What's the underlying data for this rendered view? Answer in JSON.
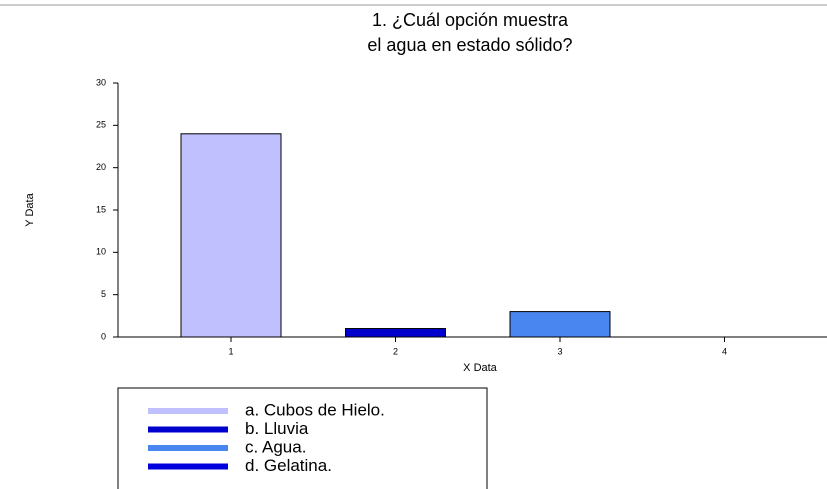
{
  "chart_data": {
    "type": "bar",
    "title_lines": [
      "1. ¿Cuál opción muestra",
      "el agua en estado sólido?"
    ],
    "x_label": "X Data",
    "y_label": "Y Data",
    "categories": [
      "1",
      "2",
      "3",
      "4"
    ],
    "values": [
      24,
      1,
      3,
      0
    ],
    "colors": [
      "#c0c0ff",
      "#0000cc",
      "#4a86f0",
      "#0000dd"
    ],
    "legend_labels": [
      "a. Cubos de Hielo.",
      "b. Lluvia",
      "c. Agua.",
      "d. Gelatina."
    ],
    "ylim": [
      0,
      30
    ],
    "yticks": [
      0,
      5,
      10,
      15,
      20,
      25,
      30
    ]
  }
}
